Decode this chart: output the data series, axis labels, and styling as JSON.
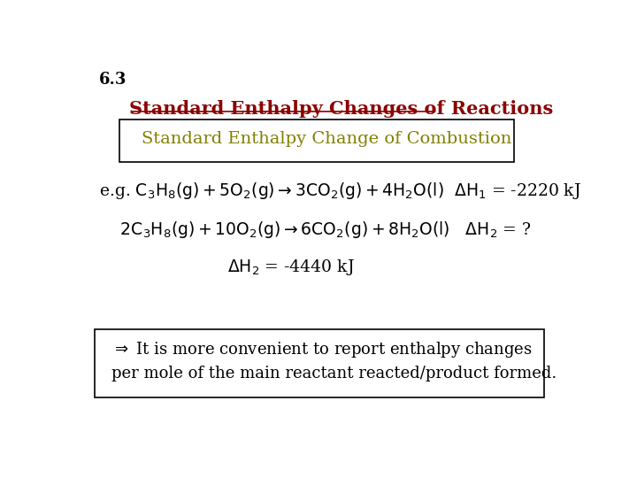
{
  "slide_number": "6.3",
  "title": "Standard Enthalpy Changes of Reactions",
  "title_color": "#8B0000",
  "subtitle": "Standard Enthalpy Change of Combustion",
  "subtitle_color": "#808000",
  "background_color": "#ffffff",
  "slide_number_color": "#000000",
  "body_color": "#000000",
  "figsize": [
    7.2,
    5.4
  ],
  "dpi": 100
}
